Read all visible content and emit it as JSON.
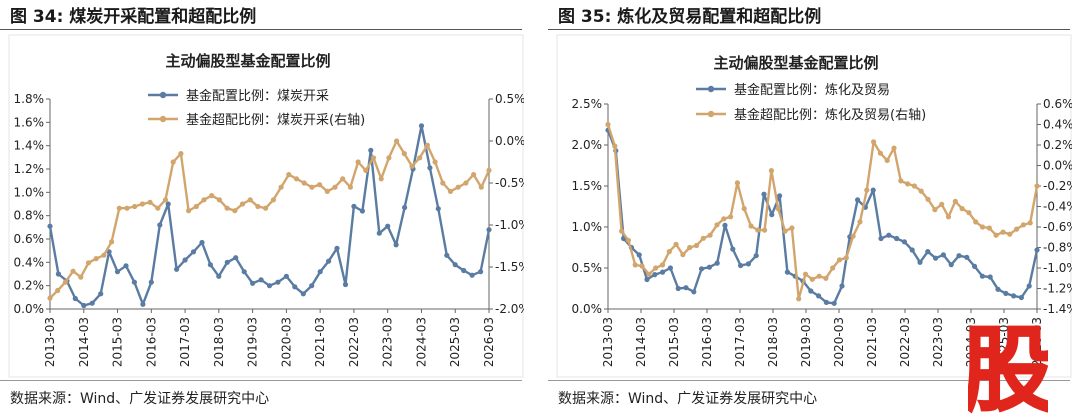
{
  "colors": {
    "blue": "#5a7ca3",
    "gold": "#d2a56d",
    "axis": "#666666",
    "stamp": "#e0261c"
  },
  "stamp_label": "股",
  "figures": [
    {
      "fig_title": "图 34:  煤炭开采配置和超配比例",
      "source": "数据来源：Wind、广发证券发展研究中心",
      "chart_data": {
        "type": "line",
        "title": "主动偏股型基金配置比例",
        "legend": [
          "基金配置比例：煤炭开采",
          "基金超配比例：煤炭开采(右轴)"
        ],
        "x_labels": [
          "2013-03",
          "2014-03",
          "2015-03",
          "2016-03",
          "2017-03",
          "2018-03",
          "2019-03",
          "2020-03",
          "2021-03",
          "2022-03",
          "2023-03",
          "2024-03",
          "2025-03",
          "2026-03"
        ],
        "y_left": {
          "min": 0,
          "max": 1.8,
          "step": 0.2,
          "ticks": [
            "0.0%",
            "0.2%",
            "0.4%",
            "0.6%",
            "0.8%",
            "1.0%",
            "1.2%",
            "1.4%",
            "1.6%",
            "1.8%"
          ]
        },
        "y_right": {
          "min": -2.0,
          "max": 0.5,
          "step": 0.5,
          "ticks": [
            "-2.0%",
            "-1.5%",
            "-1.0%",
            "-0.5%",
            "0.0%",
            "0.5%"
          ]
        },
        "series": [
          {
            "name": "基金配置比例：煤炭开采",
            "axis": "left",
            "values": [
              0.71,
              0.3,
              0.24,
              0.09,
              0.03,
              0.05,
              0.13,
              0.49,
              0.32,
              0.37,
              0.23,
              0.04,
              0.23,
              0.72,
              0.9,
              0.34,
              0.42,
              0.49,
              0.57,
              0.38,
              0.28,
              0.4,
              0.44,
              0.32,
              0.22,
              0.25,
              0.2,
              0.23,
              0.28,
              0.19,
              0.13,
              0.2,
              0.32,
              0.41,
              0.52,
              0.21,
              0.88,
              0.84,
              1.36,
              0.65,
              0.71,
              0.55,
              0.87,
              1.2,
              1.57,
              1.21,
              0.86,
              0.46,
              0.38,
              0.33,
              0.29,
              0.32,
              0.68
            ]
          },
          {
            "name": "基金超配比例：煤炭开采(右轴)",
            "axis": "right",
            "values": [
              -1.87,
              -1.78,
              -1.68,
              -1.55,
              -1.62,
              -1.45,
              -1.4,
              -1.36,
              -1.2,
              -0.8,
              -0.8,
              -0.78,
              -0.75,
              -0.73,
              -0.8,
              -0.7,
              -0.25,
              -0.15,
              -0.83,
              -0.78,
              -0.7,
              -0.65,
              -0.7,
              -0.8,
              -0.83,
              -0.75,
              -0.7,
              -0.78,
              -0.8,
              -0.7,
              -0.55,
              -0.4,
              -0.45,
              -0.5,
              -0.55,
              -0.52,
              -0.6,
              -0.55,
              -0.45,
              -0.55,
              -0.25,
              -0.35,
              -0.2,
              -0.45,
              -0.2,
              0.0,
              -0.15,
              -0.3,
              -0.2,
              -0.05,
              -0.25,
              -0.5,
              -0.6,
              -0.55,
              -0.5,
              -0.4,
              -0.55,
              -0.35
            ]
          }
        ]
      }
    },
    {
      "fig_title": "图 35:  炼化及贸易配置和超配比例",
      "source": "数据来源：Wind、广发证券发展研究中心",
      "chart_data": {
        "type": "line",
        "title": "主动偏股型基金配置比例",
        "legend": [
          "基金配置比例：炼化及贸易",
          "基金超配比例：炼化及贸易(右轴)"
        ],
        "x_labels": [
          "2013-03",
          "2014-03",
          "2015-03",
          "2016-03",
          "2017-03",
          "2018-03",
          "2019-03",
          "2020-03",
          "2021-03",
          "2022-03",
          "2023-03",
          "2024-03",
          "2025-03",
          "2026-03"
        ],
        "y_left": {
          "min": 0,
          "max": 2.5,
          "step": 0.5,
          "ticks": [
            "0.0%",
            "0.5%",
            "1.0%",
            "1.5%",
            "2.0%",
            "2.5%"
          ]
        },
        "y_right": {
          "min": -1.4,
          "max": 0.6,
          "step": 0.2,
          "ticks": [
            "-1.4%",
            "-1.2%",
            "-1.0%",
            "-0.8%",
            "-0.6%",
            "-0.4%",
            "-0.2%",
            "0.0%",
            "0.2%",
            "0.4%",
            "0.6%"
          ]
        },
        "series": [
          {
            "name": "基金配置比例：炼化及贸易",
            "axis": "left",
            "values": [
              2.18,
              1.93,
              0.86,
              0.75,
              0.66,
              0.36,
              0.42,
              0.45,
              0.5,
              0.25,
              0.26,
              0.21,
              0.49,
              0.51,
              0.56,
              1.02,
              0.73,
              0.53,
              0.55,
              0.65,
              1.4,
              1.15,
              1.38,
              0.45,
              0.4,
              0.34,
              0.22,
              0.16,
              0.08,
              0.07,
              0.28,
              0.88,
              1.33,
              1.24,
              1.45,
              0.86,
              0.9,
              0.86,
              0.82,
              0.72,
              0.57,
              0.7,
              0.62,
              0.66,
              0.54,
              0.65,
              0.63,
              0.52,
              0.4,
              0.39,
              0.24,
              0.19,
              0.16,
              0.14,
              0.28,
              0.72
            ]
          },
          {
            "name": "基金超配比例：炼化及贸易(右轴)",
            "axis": "right",
            "values": [
              0.4,
              0.19,
              -0.64,
              -0.73,
              -0.97,
              -0.98,
              -1.06,
              -1.0,
              -0.97,
              -0.84,
              -0.77,
              -0.87,
              -0.8,
              -0.78,
              -0.71,
              -0.68,
              -0.58,
              -0.52,
              -0.5,
              -0.17,
              -0.42,
              -0.59,
              -0.63,
              -0.63,
              -0.05,
              -0.42,
              -0.64,
              -0.61,
              -1.3,
              -1.06,
              -1.11,
              -1.08,
              -1.1,
              -1.0,
              -0.92,
              -0.9,
              -0.69,
              -0.55,
              -0.24,
              0.23,
              0.12,
              0.05,
              0.17,
              -0.15,
              -0.18,
              -0.2,
              -0.25,
              -0.33,
              -0.43,
              -0.38,
              -0.5,
              -0.35,
              -0.42,
              -0.46,
              -0.55,
              -0.6,
              -0.61,
              -0.68,
              -0.65,
              -0.67,
              -0.62,
              -0.58,
              -0.56,
              -0.2
            ]
          }
        ]
      }
    }
  ]
}
